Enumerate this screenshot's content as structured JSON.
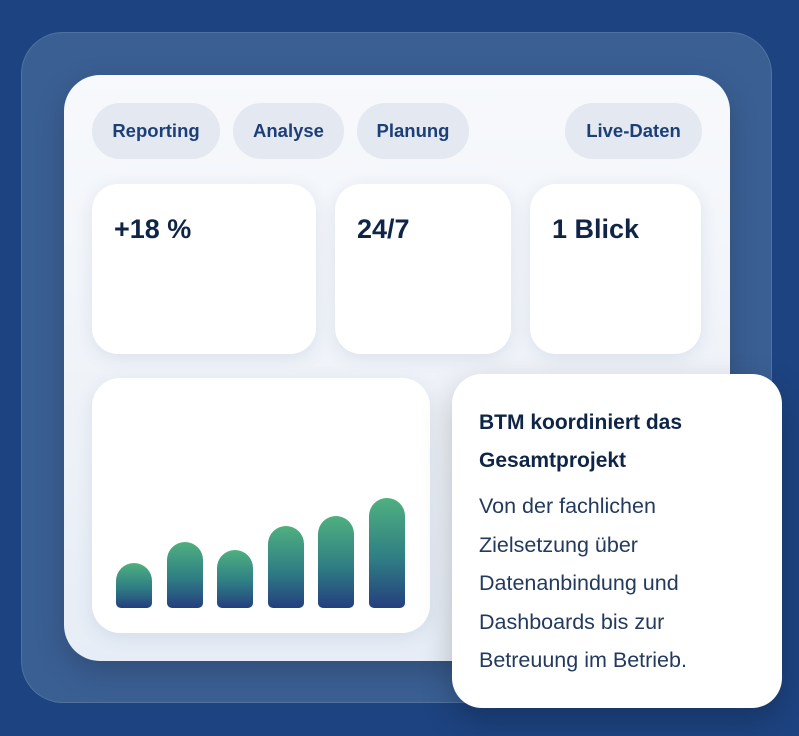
{
  "chips": [
    "Reporting",
    "Analyse",
    "Planung"
  ],
  "live_chip": "Live-Daten",
  "stats": [
    "+18 %",
    "24/7",
    "1 Blick"
  ],
  "chart_data": {
    "type": "bar",
    "values": [
      45,
      66,
      58,
      82,
      92,
      110
    ],
    "color_top": "#4fb07f",
    "color_bottom": "#243f7e"
  },
  "info": {
    "title": "BTM koordiniert das Gesamtprojekt",
    "body": "Von der fachlichen Zielsetzung über Datenanbindung und Dashboards bis zur Betreuung im Betrieb."
  }
}
